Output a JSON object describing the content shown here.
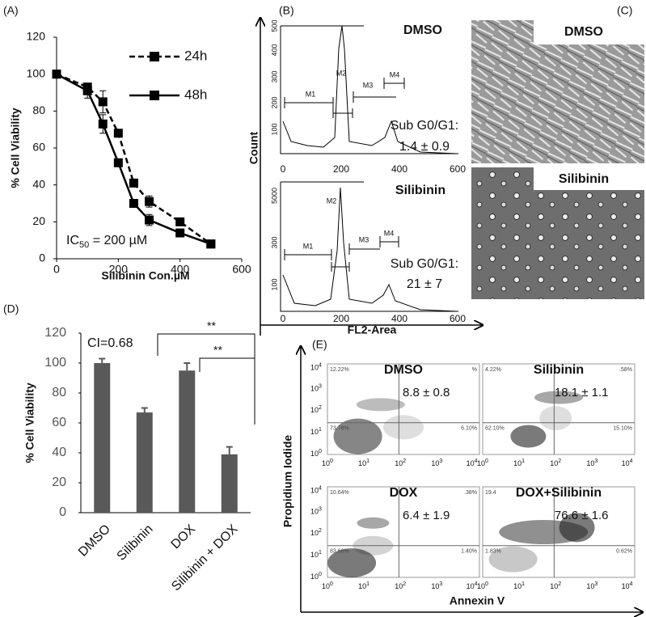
{
  "panel_labels": [
    "(A)",
    "(B)",
    "(C)",
    "(D)",
    "(E)"
  ],
  "chart_data": [
    {
      "type": "line",
      "x_label": "Silibinin Con.µM",
      "y_label": "% Cell Viability",
      "x": [
        0,
        100,
        150,
        200,
        250,
        300,
        400,
        500
      ],
      "series": [
        {
          "name": "24h",
          "color": "#000000",
          "dashed": true,
          "values": [
            100,
            93,
            85,
            68,
            41,
            31,
            20,
            8
          ],
          "errors": [
            0,
            2,
            6,
            2,
            2,
            3,
            1,
            2
          ]
        },
        {
          "name": "48h",
          "color": "#000000",
          "dashed": false,
          "values": [
            100,
            91,
            73,
            52,
            30,
            21,
            14,
            8
          ],
          "errors": [
            0,
            4,
            5,
            1,
            1,
            3,
            1,
            1
          ]
        }
      ],
      "xlim": [
        0,
        600
      ],
      "xticks": [
        0,
        200,
        400,
        600
      ],
      "ylim": [
        0,
        120
      ],
      "yticks": [
        0,
        20,
        40,
        60,
        80,
        100,
        120
      ],
      "annotation": {
        "prefix": "IC",
        "subscript": "50",
        "suffix": " = 200 µM"
      }
    },
    {
      "type": "bar",
      "y_label": "% Cell Viability",
      "categories": [
        "DMSO",
        "Silibinin",
        "DOX",
        "Silibinin + DOX"
      ],
      "values": [
        100,
        67,
        95,
        39
      ],
      "errors": [
        3,
        3,
        5,
        5
      ],
      "color": "#595959",
      "ylim": [
        0,
        120
      ],
      "yticks": [
        0,
        20,
        40,
        60,
        80,
        100,
        120
      ],
      "annotations": [
        "CI=0.68",
        "**",
        "**"
      ]
    }
  ],
  "cell_cycle": {
    "y_label": "Count",
    "x_label": "FL2-Area",
    "x_ticks": [
      "0",
      "200",
      "400",
      "600"
    ],
    "panels": [
      {
        "title": "DMSO",
        "y_ticks": [
          "100",
          "200",
          "300",
          "400",
          "500"
        ],
        "markers": [
          "M1",
          "M2",
          "M3",
          "M4"
        ],
        "sub_label": "Sub G0/G1:",
        "sub_value": "1.4 ± 0.9"
      },
      {
        "title": "Silibinin",
        "y_ticks": [
          "100",
          "300",
          "5000"
        ],
        "markers": [
          "M1",
          "M2",
          "M3",
          "M4"
        ],
        "sub_label": "Sub G0/G1:",
        "sub_value": "21 ± 7"
      }
    ]
  },
  "micrographs": [
    "DMSO",
    "Silibinin"
  ],
  "apoptosis": {
    "y_label": "Propidium Iodide",
    "x_label": "Annexin V",
    "tick_base": "10",
    "tick_exponents": [
      "0",
      "1",
      "2",
      "3",
      "4"
    ],
    "plots": [
      {
        "title": "DMSO",
        "value": "8.8  ± 0.8",
        "quadrants": {
          "tl": "12.22%",
          "tr": "%",
          "bl": "73.78%",
          "br": "6.10%"
        }
      },
      {
        "title": "Silibinin",
        "value": "18.1  ± 1.1",
        "quadrants": {
          "tl": "4.22%",
          "tr": ".58%",
          "bl": "62.10%",
          "br": "15.10%"
        }
      },
      {
        "title": "DOX",
        "value": "6.4  ± 1.9",
        "quadrants": {
          "tl": "10.64%",
          "tr": ".38%",
          "bl": "83.66%",
          "br": "1.40%"
        }
      },
      {
        "title": "DOX+Silibinin",
        "value": "76.6  ± 1.6",
        "quadrants": {
          "tl": "19.4",
          "bl": "1.83%",
          "br": "0.62%"
        }
      }
    ]
  }
}
